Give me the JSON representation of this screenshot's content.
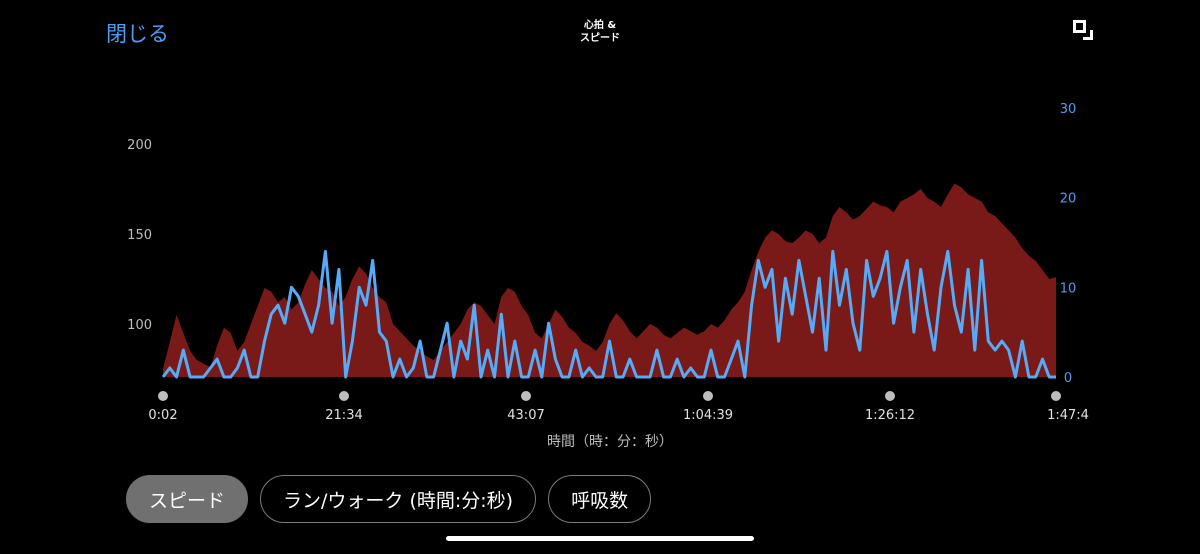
{
  "header": {
    "close_label": "閉じる",
    "title_line1": "心拍 &",
    "title_line2": "スピード",
    "corner_icon": "window-resize-icon"
  },
  "colors": {
    "heart_rate": "#7a1a18",
    "speed": "#55abf7",
    "accent": "#4a9ff5"
  },
  "chart_data": {
    "type": "area",
    "xlabel": "時間（時：分：秒）",
    "x_ticks": [
      "0:02",
      "21:34",
      "43:07",
      "1:04:39",
      "1:26:12",
      "1:47:4"
    ],
    "y_left_ticks": [
      "200",
      "150",
      "100"
    ],
    "y_right_ticks": [
      "30",
      "20",
      "10",
      "0"
    ],
    "y_left_range": [
      70,
      200
    ],
    "y_right_range": [
      0,
      30
    ],
    "series": [
      {
        "axis": "left",
        "values": [
          75,
          90,
          105,
          95,
          85,
          80,
          78,
          76,
          88,
          98,
          95,
          85,
          90,
          100,
          110,
          120,
          118,
          112,
          115,
          108,
          112,
          122,
          130,
          125,
          120,
          118,
          110,
          115,
          125,
          132,
          128,
          120,
          115,
          112,
          100,
          96,
          92,
          88,
          85,
          82,
          80,
          85,
          90,
          95,
          100,
          108,
          112,
          110,
          105,
          100,
          115,
          120,
          118,
          110,
          105,
          95,
          92,
          100,
          108,
          104,
          98,
          95,
          90,
          88,
          85,
          90,
          100,
          106,
          102,
          96,
          92,
          96,
          100,
          98,
          94,
          92,
          95,
          98,
          96,
          94,
          96,
          100,
          98,
          102,
          108,
          112,
          118,
          130,
          140,
          148,
          152,
          150,
          146,
          145,
          148,
          152,
          150,
          145,
          148,
          160,
          165,
          162,
          158,
          160,
          164,
          168,
          166,
          165,
          162,
          168,
          170,
          172,
          175,
          170,
          168,
          165,
          172,
          178,
          176,
          172,
          170,
          168,
          162,
          160,
          156,
          152,
          148,
          142,
          138,
          135,
          130,
          125,
          126
        ]
      },
      {
        "axis": "right",
        "values": [
          0,
          1,
          0,
          3,
          0,
          0,
          0,
          1,
          2,
          0,
          0,
          1,
          3,
          0,
          0,
          4,
          7,
          8,
          6,
          10,
          9,
          7,
          5,
          8,
          14,
          6,
          12,
          0,
          4,
          10,
          8,
          13,
          5,
          4,
          0,
          2,
          0,
          1,
          4,
          0,
          0,
          3,
          6,
          0,
          4,
          2,
          8,
          0,
          3,
          0,
          7,
          0,
          4,
          0,
          0,
          3,
          0,
          6,
          2,
          0,
          0,
          3,
          0,
          1,
          0,
          0,
          4,
          0,
          0,
          2,
          0,
          0,
          0,
          3,
          0,
          0,
          2,
          0,
          1,
          0,
          0,
          3,
          0,
          0,
          2,
          4,
          0,
          8,
          13,
          10,
          12,
          4,
          11,
          7,
          13,
          9,
          5,
          11,
          3,
          14,
          8,
          12,
          6,
          3,
          13,
          9,
          11,
          14,
          6,
          10,
          13,
          5,
          12,
          7,
          3,
          10,
          14,
          8,
          5,
          12,
          3,
          13,
          4,
          3,
          4,
          3,
          0,
          4,
          0,
          0,
          2,
          0,
          0
        ]
      }
    ]
  },
  "tabs": [
    {
      "label": "スピード",
      "active": true
    },
    {
      "label": "ラン/ウォーク (時間:分:秒)",
      "active": false
    },
    {
      "label": "呼吸数",
      "active": false
    }
  ]
}
